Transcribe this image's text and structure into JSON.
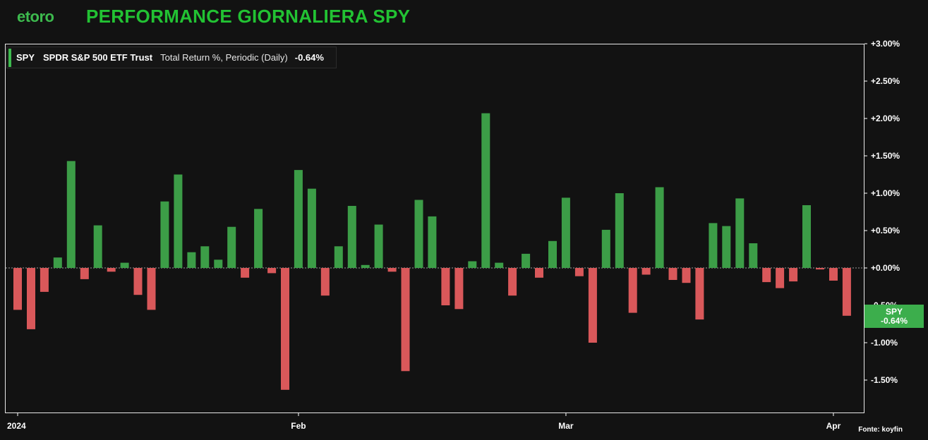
{
  "header": {
    "logo_text": "etoro",
    "title": "PERFORMANCE GIORNALIERA SPY"
  },
  "legend": {
    "ticker": "SPY",
    "name": "SPDR S&P 500 ETF Trust",
    "description": "Total Return %, Periodic (Daily)",
    "value": "-0.64%"
  },
  "badge": {
    "ticker": "SPY",
    "value": "-0.64%"
  },
  "source": "Fonte: koyfin",
  "colors": {
    "positive": "#3c9d47",
    "negative": "#d9585a",
    "background": "#121212",
    "title": "#22c233"
  },
  "chart_data": {
    "type": "bar",
    "ylim": [
      -1.9,
      3.0
    ],
    "yticks": [
      3.0,
      2.5,
      2.0,
      1.5,
      1.0,
      0.5,
      0.0,
      -0.5,
      -1.0,
      -1.5
    ],
    "ytick_labels": [
      "+3.00%",
      "+2.50%",
      "+2.00%",
      "+1.50%",
      "+1.00%",
      "+0.50%",
      "+0.00%",
      "-0.50%",
      "-1.00%",
      "-1.50%"
    ],
    "xticks": [
      {
        "label": "2024",
        "index": 0
      },
      {
        "label": "Feb",
        "index": 21
      },
      {
        "label": "Mar",
        "index": 41
      },
      {
        "label": "Apr",
        "index": 61
      }
    ],
    "values": [
      -0.56,
      -0.82,
      -0.32,
      0.14,
      1.43,
      -0.15,
      0.57,
      -0.05,
      0.07,
      -0.36,
      -0.56,
      0.89,
      1.25,
      0.21,
      0.29,
      0.11,
      0.55,
      -0.13,
      0.79,
      -0.07,
      -1.63,
      1.31,
      1.06,
      -0.37,
      0.29,
      0.83,
      0.04,
      0.58,
      -0.05,
      -1.38,
      0.91,
      0.69,
      -0.5,
      -0.55,
      0.09,
      2.07,
      0.07,
      -0.37,
      0.19,
      -0.13,
      0.36,
      0.94,
      -0.11,
      -1.0,
      0.51,
      1.0,
      -0.6,
      -0.09,
      1.08,
      -0.16,
      -0.2,
      -0.69,
      0.6,
      0.56,
      0.93,
      0.33,
      -0.19,
      -0.27,
      -0.18,
      0.84,
      -0.02,
      -0.17,
      -0.64
    ]
  }
}
